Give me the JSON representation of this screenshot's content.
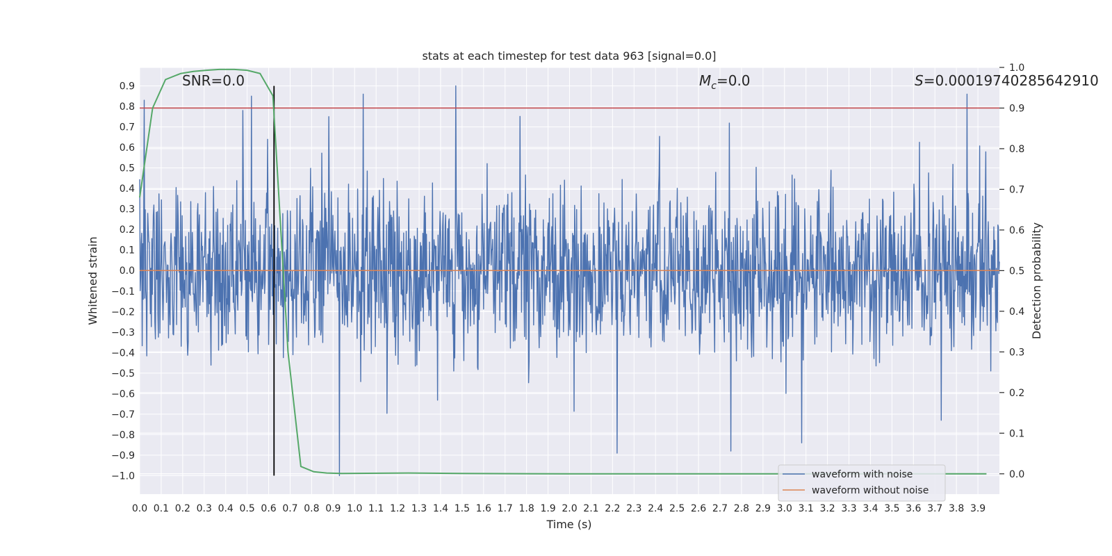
{
  "chart_data": {
    "type": "line",
    "title": "stats at each timestep for test data 963 [signal=0.0]",
    "xlabel": "Time (s)",
    "ylabel": "Whitened strain",
    "ylabel_right": "Detection probability",
    "xlim": [
      0.0,
      4.0
    ],
    "ylim": [
      -1.09,
      0.99
    ],
    "ylim_right": [
      -0.05,
      1.0
    ],
    "x_ticks": [
      "0.0",
      "0.1",
      "0.2",
      "0.3",
      "0.4",
      "0.5",
      "0.6",
      "0.7",
      "0.8",
      "0.9",
      "1.0",
      "1.1",
      "1.2",
      "1.3",
      "1.4",
      "1.5",
      "1.6",
      "1.7",
      "1.8",
      "1.9",
      "2.0",
      "2.1",
      "2.2",
      "2.3",
      "2.4",
      "2.5",
      "2.6",
      "2.7",
      "2.8",
      "2.9",
      "3.0",
      "3.1",
      "3.2",
      "3.3",
      "3.4",
      "3.5",
      "3.6",
      "3.7",
      "3.8",
      "3.9"
    ],
    "y_ticks": [
      "0.9",
      "0.8",
      "0.7",
      "0.6",
      "0.5",
      "0.4",
      "0.3",
      "0.2",
      "0.1",
      "0.0",
      "−0.1",
      "−0.2",
      "−0.3",
      "−0.4",
      "−0.5",
      "−0.6",
      "−0.7",
      "−0.8",
      "−0.9",
      "−1.0"
    ],
    "y_ticks_right": [
      "1.0",
      "0.9",
      "0.8",
      "0.7",
      "0.6",
      "0.5",
      "0.4",
      "0.3",
      "0.2",
      "0.1",
      "0.0"
    ],
    "grid": true,
    "legend_position": "lower-right",
    "annotations": {
      "snr": "SNR=0.0",
      "mc_symbol": "M",
      "mc_sub": "c",
      "mc_value": "=0.0",
      "s_symbol": "S",
      "s_value": "=0.00019740285642910"
    },
    "series": [
      {
        "name": "waveform with noise",
        "color": "#4c72b0",
        "style": "noise",
        "amplitude_typical": 0.35,
        "range": [
          -1.0,
          0.9
        ],
        "notable_peaks": [
          {
            "x": 0.02,
            "y": 0.83
          },
          {
            "x": 0.48,
            "y": 0.78
          },
          {
            "x": 0.52,
            "y": 0.85
          },
          {
            "x": 0.88,
            "y": 0.75
          },
          {
            "x": 1.04,
            "y": 0.86
          },
          {
            "x": 1.47,
            "y": 0.9
          },
          {
            "x": 3.85,
            "y": 0.86
          },
          {
            "x": 0.93,
            "y": -1.0
          },
          {
            "x": 2.75,
            "y": -0.88
          },
          {
            "x": 2.22,
            "y": -0.89
          },
          {
            "x": 3.08,
            "y": -0.84
          },
          {
            "x": 3.73,
            "y": -0.73
          }
        ]
      },
      {
        "name": "waveform without noise",
        "color": "#dd8452",
        "x": [
          0.0,
          4.0
        ],
        "y": [
          0.0,
          0.0
        ]
      },
      {
        "name": "detection probability",
        "color": "#55a868",
        "axis": "right",
        "x": [
          0.0,
          0.06,
          0.12,
          0.19,
          0.25,
          0.31,
          0.37,
          0.44,
          0.5,
          0.56,
          0.62,
          0.69,
          0.75,
          0.81,
          0.87,
          0.94,
          1.25,
          1.5,
          2.0,
          3.0,
          3.94
        ],
        "y": [
          0.68,
          0.9,
          0.97,
          0.985,
          0.99,
          0.993,
          0.995,
          0.995,
          0.993,
          0.985,
          0.93,
          0.3,
          0.018,
          0.005,
          0.002,
          0.001,
          0.002,
          0.001,
          0.0,
          0.0,
          0.0
        ]
      }
    ],
    "threshold": {
      "value_right": 0.9,
      "color": "#c44e52"
    },
    "marker_line": {
      "x": 0.625,
      "y_from": -1.0,
      "y_to": 0.9,
      "color": "#000000"
    }
  }
}
